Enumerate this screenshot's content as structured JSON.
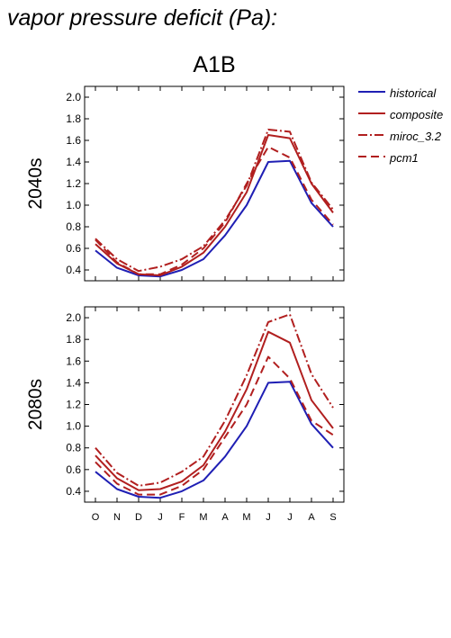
{
  "figure_title": "vapor pressure deficit (Pa):",
  "chart_data": {
    "type": "line",
    "title": "A1B",
    "categories": [
      "O",
      "N",
      "D",
      "J",
      "F",
      "M",
      "A",
      "M",
      "J",
      "J",
      "A",
      "S"
    ],
    "yticks": [
      "0.4",
      "0.6",
      "0.8",
      "1.0",
      "1.2",
      "1.4",
      "1.6",
      "1.8",
      "2.0"
    ],
    "ylim": [
      0.3,
      2.1
    ],
    "grid": false,
    "legend_position": "right",
    "legend": [
      {
        "name": "historical",
        "color": "#1f1fb4",
        "dash": "solid"
      },
      {
        "name": "composite",
        "color": "#b11f1f",
        "dash": "solid"
      },
      {
        "name": "miroc_3.2",
        "color": "#b11f1f",
        "dash": "dashdot"
      },
      {
        "name": "pcm1",
        "color": "#b11f1f",
        "dash": "dashed"
      }
    ],
    "panels": [
      {
        "label": "2040s",
        "series": [
          {
            "name": "historical",
            "values": [
              0.58,
              0.42,
              0.35,
              0.34,
              0.4,
              0.5,
              0.72,
              1.0,
              1.4,
              1.41,
              1.02,
              0.8
            ]
          },
          {
            "name": "composite",
            "values": [
              0.64,
              0.46,
              0.36,
              0.35,
              0.43,
              0.56,
              0.8,
              1.12,
              1.65,
              1.62,
              1.2,
              0.93
            ]
          },
          {
            "name": "miroc_3.2",
            "values": [
              0.69,
              0.5,
              0.39,
              0.43,
              0.5,
              0.62,
              0.86,
              1.18,
              1.7,
              1.68,
              1.21,
              0.96
            ]
          },
          {
            "name": "pcm1",
            "values": [
              0.68,
              0.47,
              0.36,
              0.36,
              0.45,
              0.6,
              0.84,
              1.2,
              1.54,
              1.44,
              1.05,
              0.82
            ]
          }
        ]
      },
      {
        "label": "2080s",
        "series": [
          {
            "name": "historical",
            "values": [
              0.58,
              0.42,
              0.35,
              0.34,
              0.4,
              0.5,
              0.72,
              1.0,
              1.4,
              1.41,
              1.02,
              0.8
            ]
          },
          {
            "name": "composite",
            "values": [
              0.73,
              0.52,
              0.41,
              0.42,
              0.49,
              0.64,
              0.95,
              1.34,
              1.87,
              1.77,
              1.24,
              0.98
            ]
          },
          {
            "name": "miroc_3.2",
            "values": [
              0.8,
              0.57,
              0.45,
              0.48,
              0.58,
              0.72,
              1.05,
              1.47,
              1.96,
              2.03,
              1.48,
              1.17
            ]
          },
          {
            "name": "pcm1",
            "values": [
              0.67,
              0.47,
              0.37,
              0.37,
              0.45,
              0.6,
              0.9,
              1.2,
              1.64,
              1.44,
              1.05,
              0.92
            ]
          }
        ]
      }
    ]
  }
}
